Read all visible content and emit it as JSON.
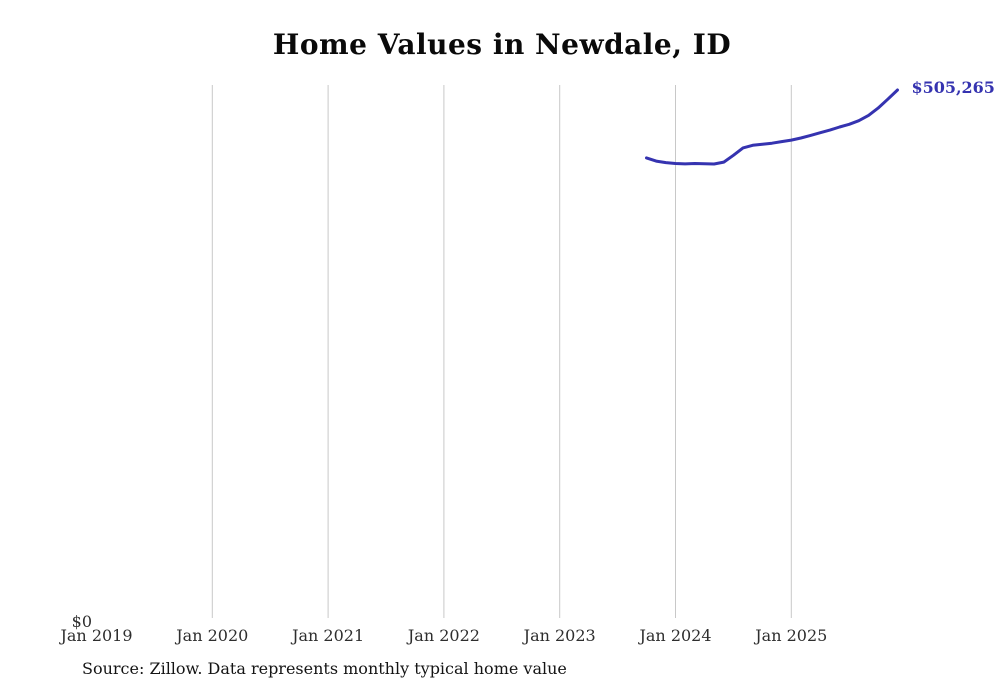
{
  "chart_data": {
    "type": "line",
    "title": "Home Values in Newdale, ID",
    "source_note": "Source: Zillow. Data represents monthly typical home value",
    "x_ticks": [
      {
        "label": "Jan 2019",
        "year": 2019
      },
      {
        "label": "Jan 2020",
        "year": 2020
      },
      {
        "label": "Jan 2021",
        "year": 2021
      },
      {
        "label": "Jan 2022",
        "year": 2022
      },
      {
        "label": "Jan 2023",
        "year": 2023
      },
      {
        "label": "Jan 2024",
        "year": 2024
      },
      {
        "label": "Jan 2025",
        "year": 2025
      }
    ],
    "y_zero_label": "$0",
    "end_value_label": "$505,265",
    "grid": "vertical-only",
    "ylim": [
      0,
      510000
    ],
    "colors": {
      "line": "#3533b0",
      "grid": "#c8c8c8",
      "tick_label": "#2e2e2e",
      "end_label": "#3533b0"
    },
    "series": [
      {
        "name": "Monthly typical home value",
        "points": [
          [
            "2023-10",
            440500
          ],
          [
            "2023-11",
            437500
          ],
          [
            "2023-12",
            436000
          ],
          [
            "2024-01",
            435200
          ],
          [
            "2024-02",
            434800
          ],
          [
            "2024-03",
            435200
          ],
          [
            "2024-04",
            435000
          ],
          [
            "2024-05",
            434700
          ],
          [
            "2024-06",
            436500
          ],
          [
            "2024-07",
            443000
          ],
          [
            "2024-08",
            450000
          ],
          [
            "2024-09",
            452500
          ],
          [
            "2024-10",
            453500
          ],
          [
            "2024-11",
            454500
          ],
          [
            "2024-12",
            456000
          ],
          [
            "2025-01",
            457500
          ],
          [
            "2025-02",
            459500
          ],
          [
            "2025-03",
            462000
          ],
          [
            "2025-04",
            464500
          ],
          [
            "2025-05",
            467000
          ],
          [
            "2025-06",
            470000
          ],
          [
            "2025-07",
            472500
          ],
          [
            "2025-08",
            476000
          ],
          [
            "2025-09",
            481000
          ],
          [
            "2025-10",
            488000
          ],
          [
            "2025-11",
            496500
          ],
          [
            "2025-12",
            505265
          ]
        ]
      }
    ]
  }
}
